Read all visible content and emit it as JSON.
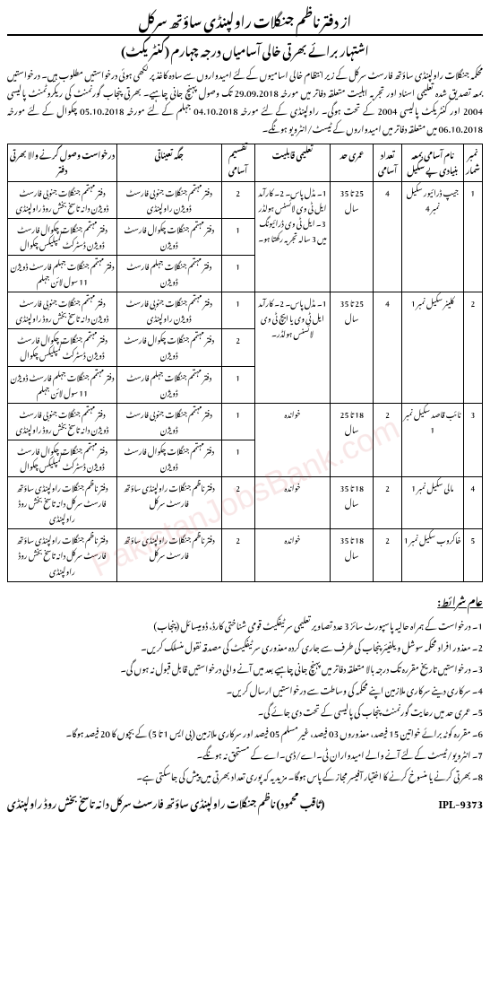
{
  "header": {
    "title": "از دفتر ناظم جنگلات راولپنڈی ساؤتھ سرکل",
    "subtitle": "اشتہار برائے بھرتی خالی آسامیاں درجہ چہارم (کنٹریکٹ)"
  },
  "intro": "محکمہ جنگلات راولپنڈی ساؤتھ فارسٹ سرکل کے زیر انتظام خالی اسامیوں کے لئے امیدواروں سے سادہ کاغذ پر لکھی ہوئی درخواستیں مطلوب ہیں۔ درخواستیں بمعہ تصدیق شدہ تعلیمی اسناد اور تجربہ اہلیت متعلقہ دفاتر میں مورخہ 29.09.2018 تک وصول پہنچ جانی چاہیے۔ بھرتی پنجاب گورنمنٹ کی ریکروٹمنٹ پالیسی 2004 اور کنٹریکٹ پالیسی 2004 کے تحت ہوگی۔ راولپنڈی کے لئے مورخہ 04.10.2018 جہلم کے لئے مورخہ 05.10.2018 چکوال کے لئے مورخہ 06.10.2018 میں متعلقہ دفاتر میں امیدواروں کے ٹیسٹ/انٹرویو ہونگے۔",
  "table": {
    "headers": {
      "num": "نمبر شمار",
      "name": "نام آسامی بمعہ بنیادی پے سکیل",
      "count": "تعداد آسامی",
      "age": "عمری حد",
      "education": "تعلیمی قابلیت",
      "distribution": "تقسیم آسامی",
      "placement": "جگہ تعیناتی",
      "office": "درخواست وصول کرنے والا بھرتی دفتر"
    },
    "rows": [
      {
        "num": "1",
        "name": "جیپ ڈرائیور سکیل نمبر 4",
        "count": "4",
        "age": "25 تا 35 سال",
        "education": "1۔ مڈل پاس۔ 2۔ کارآمد ایل ٹی وی لائسنس ہولڈر 3۔ ایل ٹی وی ڈرائیونگ میں 3 سالہ تجربہ رکھتا ہو۔",
        "distribution": [
          "2",
          "1",
          "1"
        ],
        "placement": [
          "دفتر مہتمم جنگلات جنوبی فارسٹ ڈویژن راولپنڈی",
          "دفتر مہتمم جنگلات چکوال فارسٹ ڈویژن",
          "دفتر مہتمم جنگلات جہلم فارسٹ ڈویژن"
        ],
        "office": [
          "دفتر مہتمم جنگلات جنوبی فارسٹ ڈویژن دانہ تاسخ بخش روڈ راولپنڈی",
          "دفتر مہتمم جنگلات چکوال فارسٹ ڈویژن ڈسٹرکٹ کمپلیکس چکوال",
          "دفتر مہتمم جنگلات جہلم فارسٹ ڈویژن 11 سول لائن جہلم"
        ]
      },
      {
        "num": "2",
        "name": "کلینر سکیل نمبر 1",
        "count": "4",
        "age": "25 تا 35 سال",
        "education": "1۔ مڈل پاس۔ 2۔ کارآمد ایل ٹی وی یا ایچ ٹی وی لائسنس ہولڈر۔",
        "distribution": [
          "1",
          "2",
          "1"
        ],
        "placement": [
          "دفتر مہتمم جنگلات جنوبی فارسٹ ڈویژن راولپنڈی",
          "دفتر مہتمم جنگلات چکوال فارسٹ ڈویژن",
          "دفتر مہتمم جنگلات جہلم فارسٹ ڈویژن"
        ],
        "office": [
          "دفتر مہتمم جنگلات جنوبی فارسٹ ڈویژن دانہ تاسخ بخش روڈ راولپنڈی",
          "دفتر مہتمم جنگلات چکوال فارسٹ ڈویژن ڈسٹرکٹ کمپلیکس چکوال",
          "دفتر مہتمم جنگلات جہلم فارسٹ ڈویژن 11 سول لائن جہلم"
        ]
      },
      {
        "num": "3",
        "name": "نائب قاصد سکیل نمبر 1",
        "count": "2",
        "age": "18 تا 25 سال",
        "education": "خواندہ",
        "distribution": [
          "1",
          "1"
        ],
        "placement": [
          "دفتر مہتمم جنگلات جنوبی فارسٹ ڈویژن",
          "دفتر مہتمم جنگلات چکوال فارسٹ ڈویژن"
        ],
        "office": [
          "دفتر مہتمم جنگلات جنوبی فارسٹ ڈویژن دانہ تاسخ بخش روڈ راولپنڈی",
          "دفتر مہتمم جنگلات چکوال فارسٹ ڈویژن ڈسٹرکٹ کمپلیکس چکوال"
        ]
      },
      {
        "num": "4",
        "name": "مالی سکیل نمبر 1",
        "count": "2",
        "age": "18 تا 35 سال",
        "education": "خواندہ",
        "distribution": [
          "2"
        ],
        "placement": [
          "دفتر ناظم جنگلات راولپنڈی ساؤتھ فارسٹ سرکل"
        ],
        "office": [
          "دفتر ناظم جنگلات راولپنڈی ساؤتھ فارسٹ سرکل دانہ تاسخ بخش روڈ راولپنڈی"
        ]
      },
      {
        "num": "5",
        "name": "خاکروب سکیل نمبر 1",
        "count": "2",
        "age": "18 تا 35 سال",
        "education": "خواندہ",
        "distribution": [
          "2"
        ],
        "placement": [
          "دفتر ناظم جنگلات راولپنڈی ساؤتھ فارسٹ سرکل"
        ],
        "office": [
          "دفتر ناظم جنگلات راولپنڈی ساؤتھ فارسٹ سرکل دانہ تاسخ بخش روڈ راولپنڈی"
        ]
      }
    ]
  },
  "terms": {
    "heading": "عام شرائط:",
    "items": [
      "1۔ درخواست کے ہمراہ حالیہ پاسپورٹ سائز 3 عدد تصاویر تعلیمی سرٹیفکیٹ قومی شناختی کارڈ، ڈومیسائل (پنجاب)",
      "2۔ معذور افراد محکمہ سوشل ویلفیئر پنجاب کی طرف سے جاری کردہ معذوری سرٹیفکیٹ کی مصدقہ نقول منسلک کریں۔",
      "3۔ درخواستیں تاریخ مقررہ تک درجہ بالا متعلقہ دفاتر میں پہنچ جانی چاہیے بعد میں آنے والی درخواستیں قابل قبول نہ ہوں گی۔",
      "4۔ سرکاری دینے سرکاری ملازمین اپنے محکمہ کی وساطت سے درخواستیں ارسال کریں۔",
      "5۔ عمری حد میں رعایت گورنمنٹ پنجاب کی پالیسی کے تحت دی جائے گی۔",
      "6۔ مقررہ کوٹہ برائے خواتین 15 فیصد، معذوروں 03 فیصد، غیر مسلم 05 فیصد اور سرکاری ملازمین (بی ایس 1 تا 5) کے بچوں کا 20 فیصد ہوگا۔",
      "7۔ انٹرویو/ٹیسٹ کے لئے آنے والے امیدواران ٹی۔اے/ڈی۔اے کے مستحق نہ ہونگے۔",
      "8۔ بھرتی کرنے یا منسوخ کرنے کا اختیار آفیسر مجاز کے پاس ہوگا۔ مزید یہ کہ پوری تعداد بھرتی میں پیش کی جاسکتی ہے۔"
    ]
  },
  "signature": {
    "name": "(ثاقب محمود)",
    "designation": "ناظم جنگلات راولپنڈی ساؤتھ فارسٹ سرکل دانہ تاسخ بخش روڈ راولپنڈی",
    "ref": "IPL-9373"
  },
  "watermark": "PakistanJobsBank.com"
}
